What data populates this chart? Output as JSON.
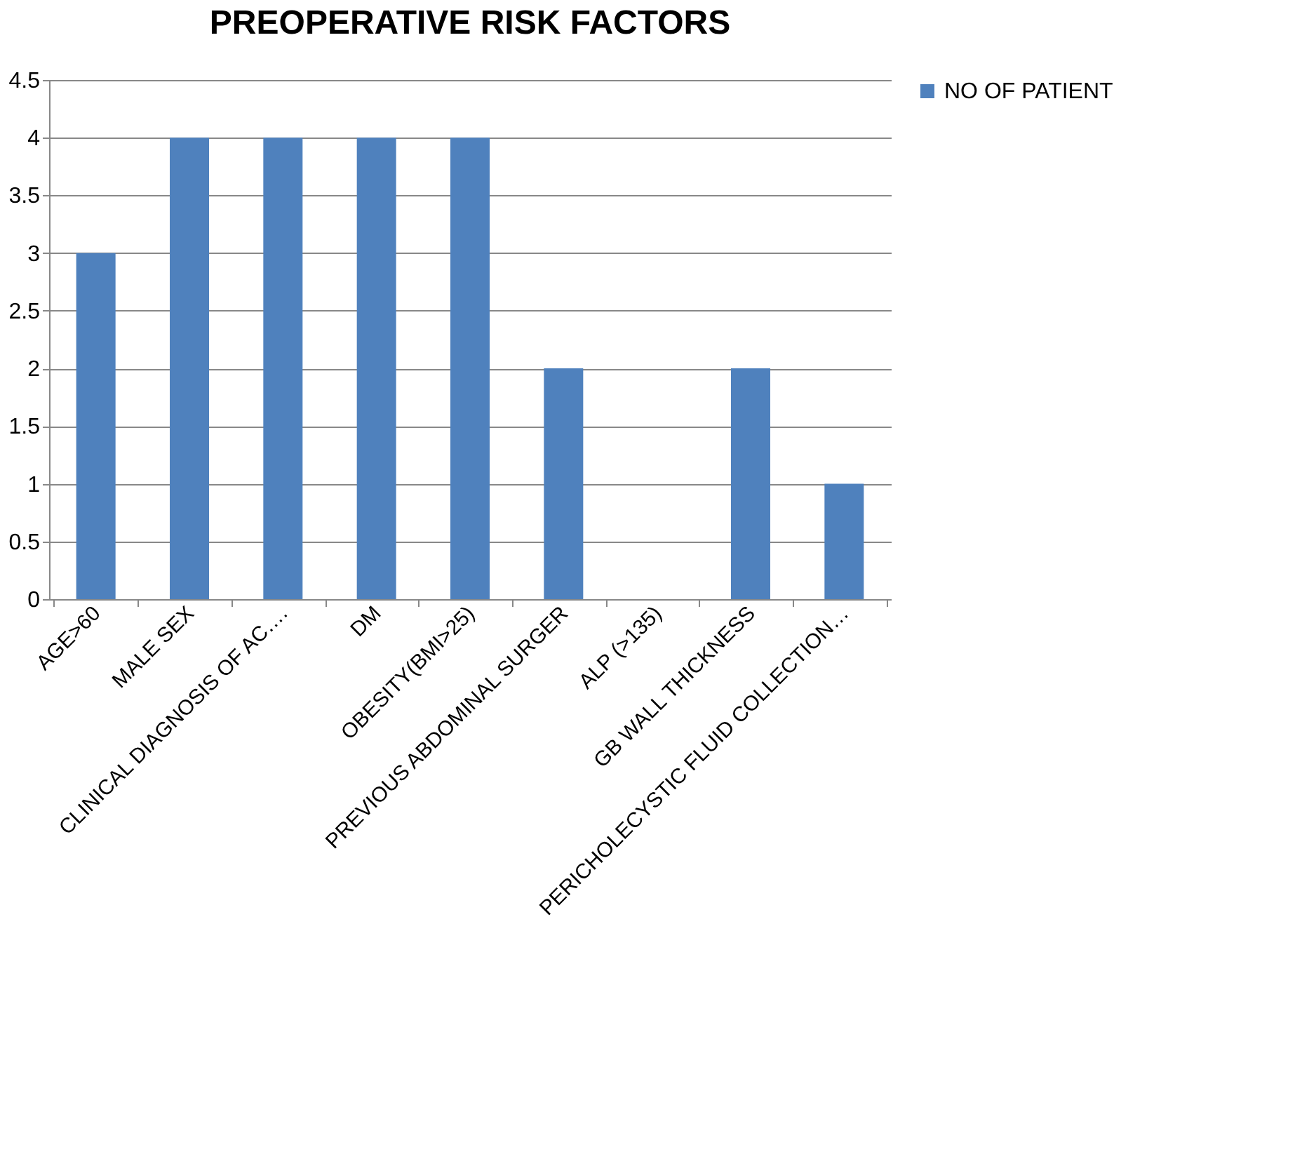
{
  "chart_data": {
    "type": "bar",
    "title": "PREOPERATIVE RISK FACTORS",
    "categories": [
      "AGE>60",
      "MALE SEX",
      "CLINICAL DIAGNOSIS OF AC….",
      "DM",
      "OBESITY(BMI>25)",
      "PREVIOUS ABDOMINAL SURGER",
      "ALP (>135)",
      "GB WALL THICKNESS",
      "PERICHOLECYSTIC FLUID COLLECTION…"
    ],
    "series": [
      {
        "name": "NO OF PATIENT",
        "color": "#4f81bd",
        "values": [
          3,
          4,
          4,
          4,
          4,
          2,
          0,
          2,
          1
        ]
      }
    ],
    "ylim": [
      0,
      4.5
    ],
    "yticks": [
      0,
      0.5,
      1,
      1.5,
      2,
      2.5,
      3,
      3.5,
      4,
      4.5
    ],
    "grid": "y",
    "legend": "right"
  }
}
